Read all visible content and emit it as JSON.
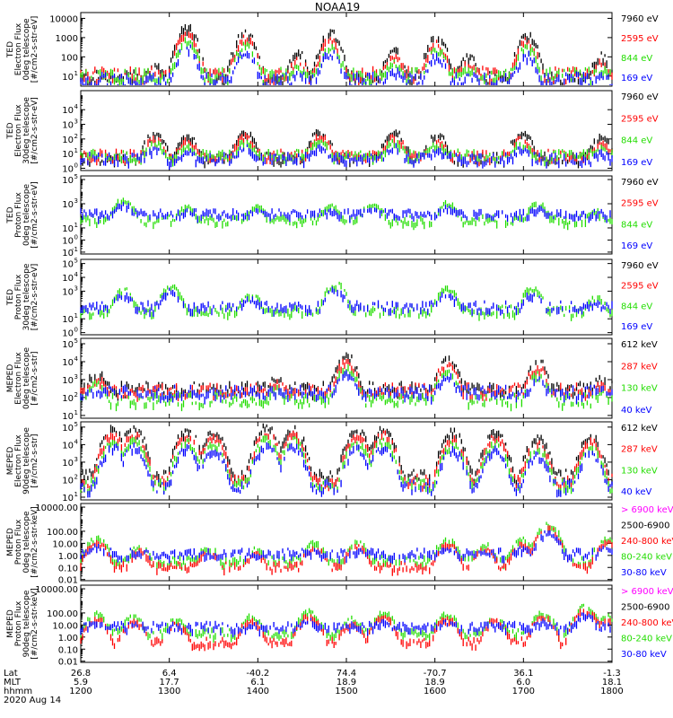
{
  "title": "NOAA19",
  "colors": {
    "black": "#000000",
    "red": "#ff0000",
    "green": "#22dd00",
    "blue": "#0000ff",
    "magenta": "#ff00ff"
  },
  "chart_data": [
    {
      "type": "scatter",
      "ylabel": [
        "TED",
        "Electron Flux",
        "0deg telescope",
        "[#/cm2-s-str-eV]"
      ],
      "yscale": "log",
      "yticks": [
        "10000",
        "1000",
        "100",
        "10"
      ],
      "tick_exp": [
        4,
        3,
        2,
        1
      ],
      "ylim": [
        3,
        20000
      ],
      "legend": [
        {
          "label": "7960 eV",
          "color": "black"
        },
        {
          "label": "2595 eV",
          "color": "red"
        },
        {
          "label": "844 eV",
          "color": "green"
        },
        {
          "label": "169 eV",
          "color": "blue"
        }
      ],
      "events": [
        [
          0.14,
          1.6
        ],
        [
          0.2,
          3.6
        ],
        [
          0.31,
          3.4
        ],
        [
          0.41,
          2.2
        ],
        [
          0.47,
          3.3
        ],
        [
          0.59,
          2.4
        ],
        [
          0.67,
          3.1
        ],
        [
          0.73,
          2.1
        ],
        [
          0.84,
          3.2
        ],
        [
          0.98,
          2.1
        ]
      ],
      "base": {
        "black": 1.0,
        "red": 1.2,
        "green": 1.15,
        "blue": 0.9
      }
    },
    {
      "type": "scatter",
      "ylabel": [
        "TED",
        "Electron Flux",
        "30deg telescope",
        "[#/cm2-s-str-eV]"
      ],
      "yscale": "log",
      "yticks": [
        "10",
        "10",
        "10",
        "10",
        "10"
      ],
      "tick_exp": [
        4,
        3,
        2,
        1,
        0
      ],
      "ylim": [
        0.7,
        200000
      ],
      "legend": [
        {
          "label": "7960 eV",
          "color": "black"
        },
        {
          "label": "2595 eV",
          "color": "red"
        },
        {
          "label": "844 eV",
          "color": "green"
        },
        {
          "label": "169 eV",
          "color": "blue"
        }
      ],
      "events": [
        [
          0.14,
          2.5
        ],
        [
          0.2,
          2.3
        ],
        [
          0.31,
          2.6
        ],
        [
          0.45,
          2.6
        ],
        [
          0.59,
          2.6
        ],
        [
          0.67,
          2.4
        ],
        [
          0.83,
          2.5
        ],
        [
          0.98,
          2.2
        ]
      ],
      "base": {
        "black": 0.8,
        "red": 1.0,
        "green": 1.0,
        "blue": 0.8
      }
    },
    {
      "type": "scatter",
      "ylabel": [
        "TED",
        "Proton Flux",
        "0deg telescope",
        "[#/cm2-s-str-eV]"
      ],
      "yscale": "log",
      "yticks": [
        "10",
        "10",
        "10",
        "10",
        "10"
      ],
      "tick_exp": [
        5,
        3,
        1,
        0,
        -1
      ],
      "ylim": [
        0.07,
        200000
      ],
      "legend": [
        {
          "label": "7960 eV",
          "color": "black"
        },
        {
          "label": "2595 eV",
          "color": "red"
        },
        {
          "label": "844 eV",
          "color": "green"
        },
        {
          "label": "169 eV",
          "color": "blue"
        }
      ],
      "events": [
        [
          0.08,
          3.4
        ],
        [
          0.2,
          2.8
        ],
        [
          0.33,
          2.9
        ],
        [
          0.47,
          2.9
        ],
        [
          0.55,
          3.1
        ],
        [
          0.69,
          3.2
        ],
        [
          0.86,
          3.1
        ],
        [
          0.97,
          2.5
        ]
      ],
      "base": {
        "green": 1.8,
        "blue": 2.3
      }
    },
    {
      "type": "scatter",
      "ylabel": [
        "TED",
        "Proton Flux",
        "30deg telescope",
        "[#/cm2-s-str-eV]"
      ],
      "yscale": "log",
      "yticks": [
        "10",
        "10",
        "10",
        "10",
        "10"
      ],
      "tick_exp": [
        5,
        4,
        3,
        1,
        0
      ],
      "ylim": [
        0.7,
        200000
      ],
      "legend": [
        {
          "label": "7960 eV",
          "color": "black"
        },
        {
          "label": "2595 eV",
          "color": "red"
        },
        {
          "label": "844 eV",
          "color": "green"
        },
        {
          "label": "169 eV",
          "color": "blue"
        }
      ],
      "events": [
        [
          0.08,
          3.2
        ],
        [
          0.17,
          3.5
        ],
        [
          0.32,
          2.9
        ],
        [
          0.48,
          3.6
        ],
        [
          0.69,
          3.3
        ],
        [
          0.85,
          3.3
        ],
        [
          0.97,
          2.6
        ]
      ],
      "base": {
        "green": 1.7,
        "blue": 2.0
      }
    },
    {
      "type": "scatter",
      "ylabel": [
        "MEPED",
        "Electron Flux",
        "0deg telescope",
        "[#/cm2-s-str]"
      ],
      "yscale": "log",
      "yticks": [
        "10",
        "10",
        "10",
        "10",
        "10"
      ],
      "tick_exp": [
        5,
        4,
        3,
        2,
        1
      ],
      "ylim": [
        7,
        200000
      ],
      "legend": [
        {
          "label": "612 keV",
          "color": "black"
        },
        {
          "label": "287 keV",
          "color": "red"
        },
        {
          "label": "130 keV",
          "color": "green"
        },
        {
          "label": "40 keV",
          "color": "blue"
        }
      ],
      "events": [
        [
          0.03,
          3.5
        ],
        [
          0.37,
          3.2
        ],
        [
          0.5,
          4.4
        ],
        [
          0.69,
          4.3
        ],
        [
          0.86,
          4.1
        ],
        [
          0.98,
          3.1
        ]
      ],
      "base": {
        "black": 2.6,
        "red": 2.5,
        "green": 2.0,
        "blue": 2.4
      }
    },
    {
      "type": "scatter",
      "ylabel": [
        "MEPED",
        "Electron Flux",
        "90deg telescope",
        "[#/cm2-s-str]"
      ],
      "yscale": "log",
      "yticks": [
        "10",
        "10",
        "10",
        "10",
        "10"
      ],
      "tick_exp": [
        5,
        4,
        3,
        2,
        1
      ],
      "ylim": [
        7,
        200000
      ],
      "legend": [
        {
          "label": "612 keV",
          "color": "black"
        },
        {
          "label": "287 keV",
          "color": "red"
        },
        {
          "label": "130 keV",
          "color": "green"
        },
        {
          "label": "40 keV",
          "color": "blue"
        }
      ],
      "events": [
        [
          0.06,
          5.0
        ],
        [
          0.1,
          5.0
        ],
        [
          0.2,
          4.9
        ],
        [
          0.25,
          4.8
        ],
        [
          0.35,
          5.1
        ],
        [
          0.4,
          5.0
        ],
        [
          0.52,
          4.9
        ],
        [
          0.57,
          5.0
        ],
        [
          0.7,
          4.8
        ],
        [
          0.78,
          4.8
        ],
        [
          0.86,
          4.5
        ],
        [
          0.96,
          4.6
        ]
      ],
      "base": {
        "black": 2.3,
        "red": 2.0,
        "green": 1.8,
        "blue": 1.7
      }
    },
    {
      "type": "scatter",
      "ylabel": [
        "MEPED",
        "Proton Flux",
        "0deg telescope",
        "[#/cm2-s-str-keV]"
      ],
      "yscale": "log",
      "yticks": [
        "10000.00",
        "100.00",
        "10.00",
        "1.00",
        "0.10",
        "0.01"
      ],
      "tick_exp": [
        4,
        2,
        1,
        0,
        -1,
        -2
      ],
      "ylim": [
        0.008,
        20000
      ],
      "legend": [
        {
          "label": "> 6900 keV",
          "color": "magenta"
        },
        {
          "label": "2500-6900",
          "color": "black"
        },
        {
          "label": "240-800 keV",
          "color": "red"
        },
        {
          "label": "80-240 keV",
          "color": "green"
        },
        {
          "label": "30-80 keV",
          "color": "blue"
        }
      ],
      "events": [
        [
          0.03,
          1.5
        ],
        [
          0.11,
          0.8
        ],
        [
          0.24,
          0.8
        ],
        [
          0.33,
          0.6
        ],
        [
          0.44,
          1.1
        ],
        [
          0.52,
          1.2
        ],
        [
          0.69,
          1.4
        ],
        [
          0.76,
          1.0
        ],
        [
          0.83,
          1.4
        ],
        [
          0.88,
          2.7
        ],
        [
          0.99,
          1.5
        ]
      ],
      "base": {
        "green": -0.3,
        "red": -0.8,
        "blue": 0.3
      }
    },
    {
      "type": "scatter",
      "ylabel": [
        "MEPED",
        "Proton Flux",
        "90deg telescope",
        "[#/cm2-s-str-keV]"
      ],
      "yscale": "log",
      "yticks": [
        "10000.00",
        "100.00",
        "10.00",
        "1.00",
        "0.10",
        "0.01"
      ],
      "tick_exp": [
        4,
        2,
        1,
        0,
        -1,
        -2
      ],
      "ylim": [
        0.008,
        20000
      ],
      "legend": [
        {
          "label": "> 6900 keV",
          "color": "magenta"
        },
        {
          "label": "2500-6900",
          "color": "black"
        },
        {
          "label": "240-800 keV",
          "color": "red"
        },
        {
          "label": "80-240 keV",
          "color": "green"
        },
        {
          "label": "30-80 keV",
          "color": "blue"
        }
      ],
      "events": [
        [
          0.03,
          2.0
        ],
        [
          0.1,
          1.8
        ],
        [
          0.18,
          1.6
        ],
        [
          0.32,
          1.8
        ],
        [
          0.43,
          2.2
        ],
        [
          0.51,
          1.6
        ],
        [
          0.57,
          2.1
        ],
        [
          0.69,
          2.0
        ],
        [
          0.78,
          1.8
        ],
        [
          0.87,
          2.1
        ],
        [
          0.95,
          2.7
        ],
        [
          0.99,
          1.9
        ]
      ],
      "base": {
        "green": 0.5,
        "red": -0.3,
        "blue": 1.0
      }
    }
  ],
  "x_axis": {
    "row_labels": [
      "Lat",
      "MLT",
      "hhmm",
      "2020 Aug 14"
    ],
    "ticks": [
      {
        "lat": "26.8",
        "mlt": "5.9",
        "hhmm": "1200"
      },
      {
        "lat": "6.4",
        "mlt": "17.7",
        "hhmm": "1300"
      },
      {
        "lat": "-40.2",
        "mlt": "6.1",
        "hhmm": "1400"
      },
      {
        "lat": "74.4",
        "mlt": "18.9",
        "hhmm": "1500"
      },
      {
        "lat": "-70.7",
        "mlt": "18.9",
        "hhmm": "1600"
      },
      {
        "lat": "36.1",
        "mlt": "6.0",
        "hhmm": "1700"
      },
      {
        "lat": "-1.3",
        "mlt": "18.1",
        "hhmm": "1800"
      }
    ]
  }
}
